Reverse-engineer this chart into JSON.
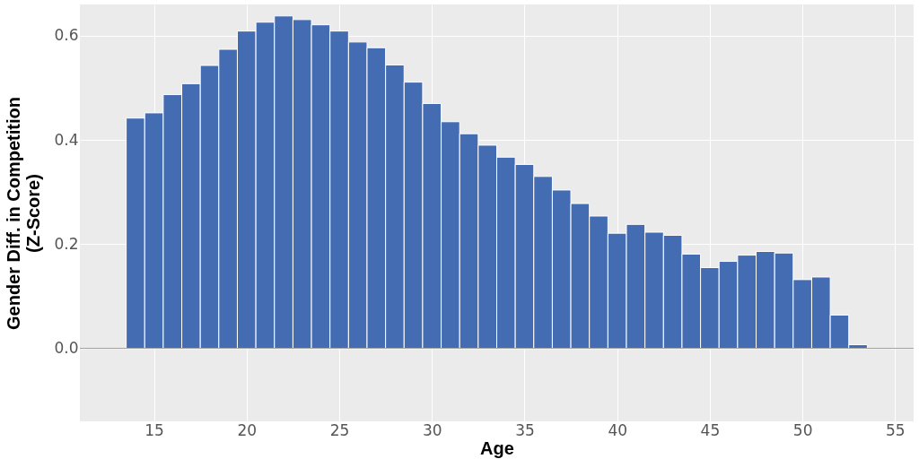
{
  "chart_data": {
    "type": "histogram",
    "xlabel": "Age",
    "ylabel": "Gender Diff. in Competition\n(Z-Score)",
    "bins": [
      13.5,
      14.5,
      15.5,
      16.5,
      17.5,
      18.5,
      19.5,
      20.5,
      21.5,
      22.5,
      23.5,
      24.5,
      25.5,
      26.5,
      27.5,
      28.5,
      29.5,
      30.5,
      31.5,
      32.5,
      33.5,
      34.5,
      35.5,
      36.5,
      37.5,
      38.5,
      39.5,
      40.5,
      41.5,
      42.5,
      43.5,
      44.5,
      45.5,
      46.5,
      47.5,
      48.5,
      49.5,
      50.5,
      51.5,
      52.5,
      53.5
    ],
    "values": [
      0.442,
      0.452,
      0.487,
      0.508,
      0.543,
      0.574,
      0.609,
      0.626,
      0.638,
      0.631,
      0.621,
      0.609,
      0.588,
      0.577,
      0.544,
      0.511,
      0.47,
      0.435,
      0.412,
      0.39,
      0.367,
      0.353,
      0.33,
      0.304,
      0.278,
      0.254,
      0.221,
      0.238,
      0.223,
      0.217,
      0.181,
      0.155,
      0.167,
      0.179,
      0.186,
      0.183,
      0.132,
      0.137,
      0.064,
      0.007
    ],
    "color": "#446cb3",
    "xlim": [
      11,
      56
    ],
    "xticks": [
      15,
      20,
      25,
      30,
      35,
      40,
      45,
      50,
      55
    ],
    "ylim": [
      -0.14,
      0.66
    ],
    "yticks": [
      {
        "value": 0,
        "label": "0.0"
      },
      {
        "value": 0.2,
        "label": "0.2"
      },
      {
        "value": 0.4,
        "label": "0.4"
      },
      {
        "value": 0.6,
        "label": "0.6"
      }
    ],
    "grid": true
  }
}
